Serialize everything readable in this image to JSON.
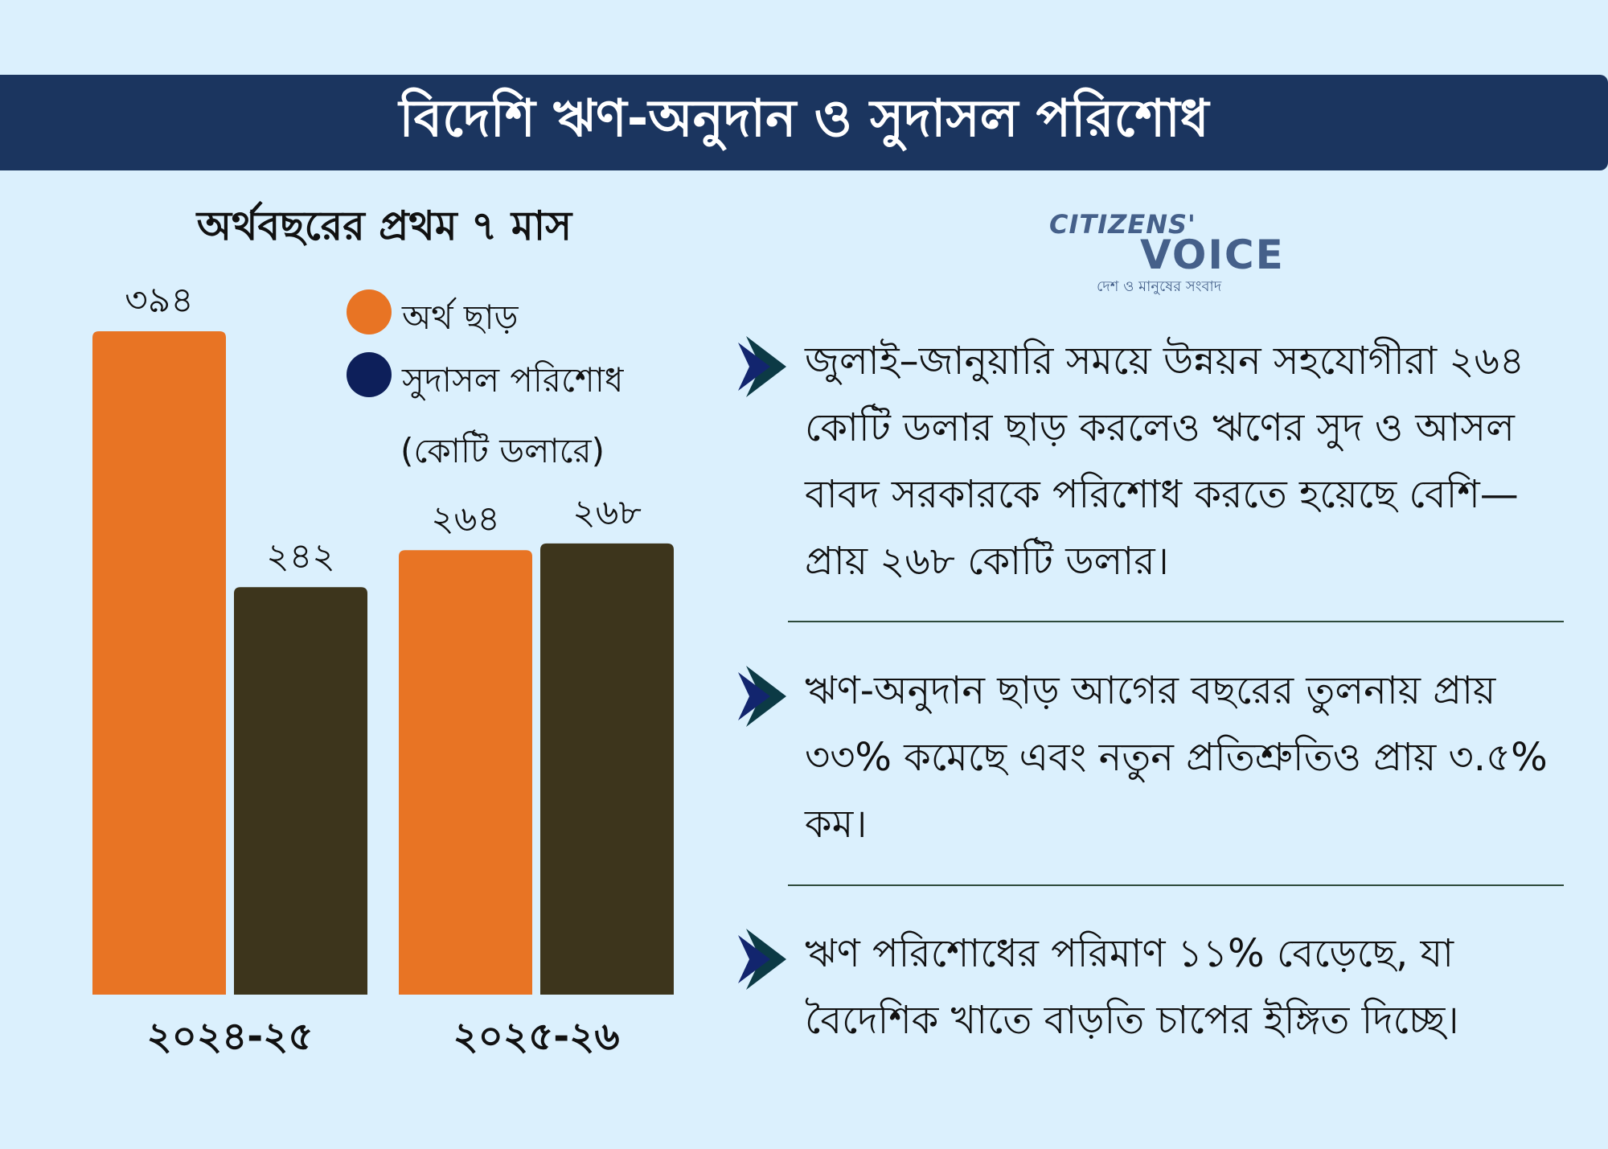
{
  "header": {
    "title": "বিদেশি ঋণ-অনুদান ও সুদাসল পরিশোধ"
  },
  "subtitle": "অর্থবছরের প্রথম ৭ মাস",
  "legend": {
    "items": [
      {
        "label": "অর্থ ছাড়",
        "color": "#e87424"
      },
      {
        "label": "সুদাসল পরিশোধ",
        "color": "#0d1f5a"
      }
    ],
    "unit": "(কোটি ডলারে)"
  },
  "logo": {
    "line1": "CITIZENS'",
    "line2": "VOICE",
    "tagline": "দেশ ও মানুষের সংবাদ"
  },
  "chart_data": {
    "type": "bar",
    "title": "অর্থবছরের প্রথম ৭ মাস",
    "categories": [
      "২০২৪-২৫",
      "২০২৫-২৬"
    ],
    "series": [
      {
        "name": "অর্থ ছাড়",
        "color": "#e87424",
        "values": [
          394,
          264
        ],
        "labels": [
          "৩৯৪",
          "২৬৪"
        ]
      },
      {
        "name": "সুদাসল পরিশোধ",
        "color": "#3d351c",
        "values": [
          242,
          268
        ],
        "labels": [
          "২৪২",
          "২৬৮"
        ]
      }
    ],
    "ylabel": "(কোটি ডলারে)",
    "ylim": [
      0,
      394
    ],
    "grid": false,
    "legend": "top-right"
  },
  "bullets": [
    {
      "text": "জুলাই–জানুয়ারি সময়ে উন্নয়ন সহযোগীরা ২৬৪ কোটি ডলার ছাড় করলেও ঋণের সুদ ও আসল বাবদ সরকারকে পরিশোধ করতে হয়েছে বেশি—প্রায় ২৬৮ কোটি ডলার।"
    },
    {
      "text": "ঋণ-অনুদান ছাড় আগের বছরের তুলনায় প্রায় ৩৩% কমেছে এবং নতুন প্রতিশ্রুতিও প্রায় ৩.৫% কম।"
    },
    {
      "text": "ঋণ পরিশোধের পরিমাণ ১১% বেড়েছে, যা বৈদেশিক খাতে বাড়তি চাপের ইঙ্গিত দিচ্ছে।"
    }
  ]
}
